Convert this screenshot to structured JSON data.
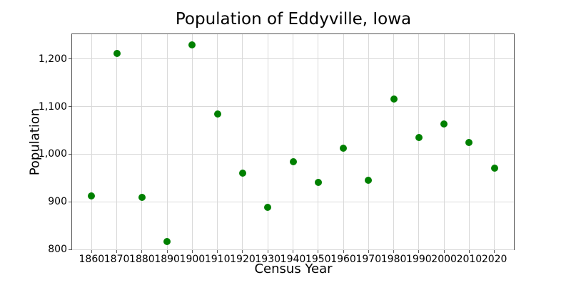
{
  "chart_data": {
    "type": "scatter",
    "title": "Population of Eddyville, Iowa",
    "xlabel": "Census Year",
    "ylabel": "Population",
    "x": [
      1860,
      1870,
      1880,
      1890,
      1900,
      1910,
      1920,
      1930,
      1940,
      1950,
      1960,
      1970,
      1980,
      1990,
      2000,
      2010,
      2020
    ],
    "y": [
      912,
      1211,
      909,
      816,
      1230,
      1084,
      960,
      888,
      984,
      941,
      1013,
      945,
      1116,
      1035,
      1064,
      1024,
      971
    ],
    "xlim": [
      1852.25,
      2027.75
    ],
    "ylim": [
      800,
      1252
    ],
    "xticks": [
      1860,
      1870,
      1880,
      1890,
      1900,
      1910,
      1920,
      1930,
      1940,
      1950,
      1960,
      1970,
      1980,
      1990,
      2000,
      2010,
      2020
    ],
    "xtick_labels": [
      "1860",
      "1870",
      "1880",
      "1890",
      "1900",
      "1910",
      "1920",
      "1930",
      "1940",
      "1950",
      "1960",
      "1970",
      "1980",
      "1990",
      "2000",
      "2010",
      "2020"
    ],
    "yticks": [
      800,
      900,
      1000,
      1100,
      1200
    ],
    "ytick_labels": [
      "800",
      "900",
      "1,000",
      "1,100",
      "1,200"
    ],
    "grid": true,
    "legend": null,
    "colors": {
      "marker": "#008000",
      "grid": "#d9d9d9",
      "spine": "#555555",
      "text": "#000000"
    }
  }
}
